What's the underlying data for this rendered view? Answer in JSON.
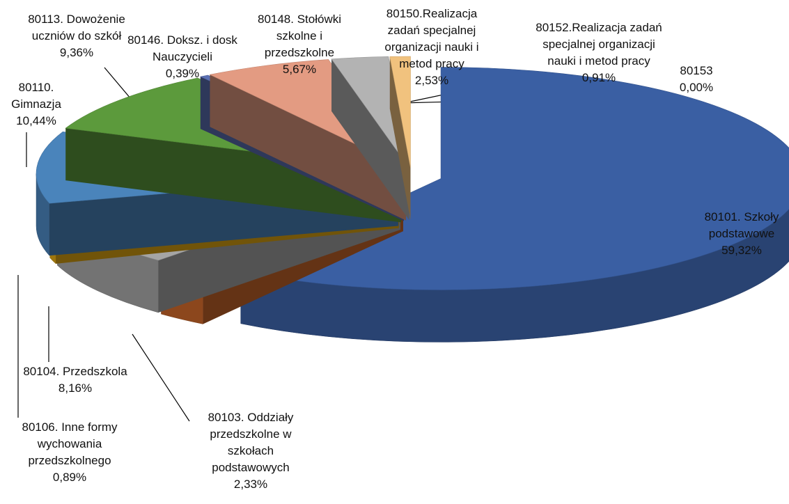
{
  "chart_data": {
    "type": "pie",
    "categories": [
      "80101. Szkoły podstawowe",
      "80103. Oddziały przedszkolne w szkołach podstawowych",
      "80104. Przedszkola",
      "80106. Inne formy wychowania przedszkolnego",
      "80110. Gimnazja",
      "80113. Dowożenie uczniów do szkół",
      "80146. Doksz. i dosk Nauczycieli",
      "80148. Stołówki szkolne i przedszkolne",
      "80150.Realizacja zadań specjalnej organizacji nauki i metod pracy",
      "80152.Realizacja zadań specjalnej organizacji nauki i metod pracy",
      "80153"
    ],
    "values": [
      59.32,
      2.33,
      8.16,
      0.89,
      10.44,
      9.36,
      0.39,
      5.67,
      2.53,
      0.91,
      0.0
    ],
    "value_labels": [
      "59,32%",
      "2,33%",
      "8,16%",
      "0,89%",
      "10,44%",
      "9,36%",
      "0,39%",
      "5,67%",
      "2,53%",
      "0,91%",
      "0,00%"
    ],
    "colors": [
      "#3a5fa3",
      "#c8652a",
      "#a5a5a5",
      "#e2a812",
      "#4a84bb",
      "#5c9a3c",
      "#5b70b3",
      "#e39b82",
      "#b3b3b3",
      "#f1c27e",
      "#f5d9a8"
    ]
  }
}
